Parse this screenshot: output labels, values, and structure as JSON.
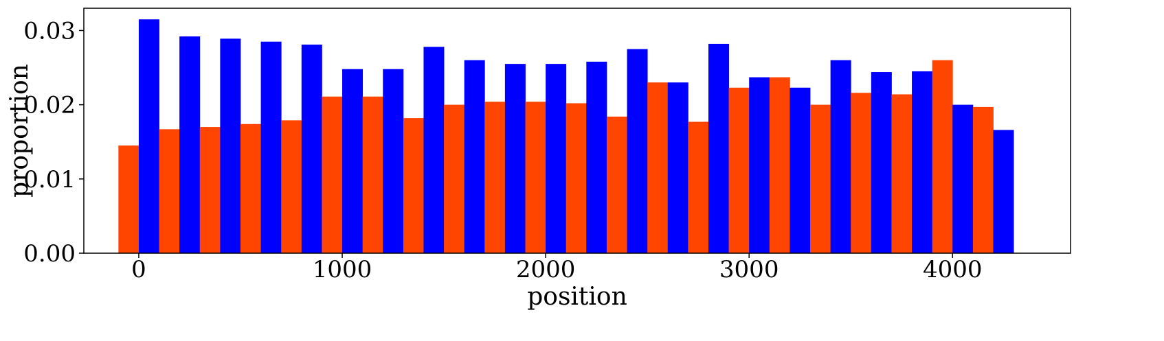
{
  "chart_data": {
    "type": "bar",
    "xlabel": "position",
    "ylabel": "proportion",
    "xlim": [
      -270,
      4580
    ],
    "ylim": [
      0,
      0.033
    ],
    "grid": false,
    "x": [
      0,
      200,
      400,
      600,
      800,
      1000,
      1200,
      1400,
      1600,
      1800,
      2000,
      2200,
      2400,
      2600,
      2800,
      3000,
      3200,
      3400,
      3600,
      3800,
      4000,
      4200
    ],
    "bin_width": 200,
    "series": [
      {
        "color": "#ff4500",
        "values": [
          0.0145,
          0.0167,
          0.017,
          0.0174,
          0.0179,
          0.0211,
          0.0211,
          0.0182,
          0.02,
          0.0204,
          0.0204,
          0.0202,
          0.0184,
          0.023,
          0.0177,
          0.0223,
          0.0237,
          0.02,
          0.0216,
          0.0214,
          0.026,
          0.0197
        ]
      },
      {
        "color": "#0000ff",
        "values": [
          0.0315,
          0.0292,
          0.0289,
          0.0285,
          0.0281,
          0.0248,
          0.0248,
          0.0278,
          0.026,
          0.0255,
          0.0255,
          0.0258,
          0.0275,
          0.023,
          0.0282,
          0.0237,
          0.0223,
          0.026,
          0.0244,
          0.0245,
          0.02,
          0.0166
        ]
      }
    ],
    "x_ticks": [
      0,
      1000,
      2000,
      3000,
      4000
    ],
    "x_tick_labels": [
      "0",
      "1000",
      "2000",
      "3000",
      "4000"
    ],
    "y_ticks": [
      0,
      0.01,
      0.02,
      0.03
    ],
    "y_tick_labels": [
      "0.00",
      "0.01",
      "0.02",
      "0.03"
    ]
  }
}
